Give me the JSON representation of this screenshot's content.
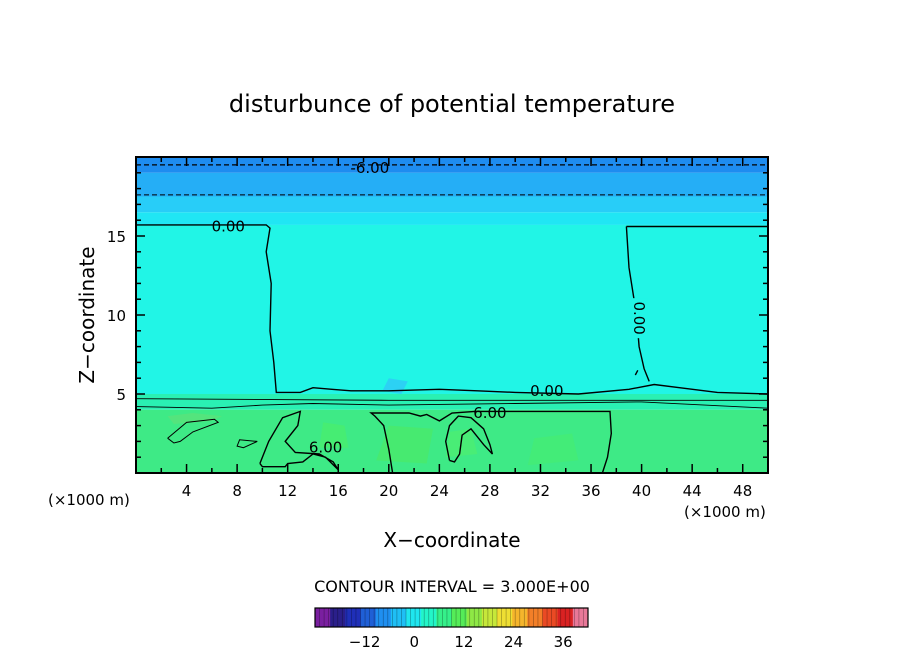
{
  "chart_data": {
    "type": "heatmap",
    "title": "disturbunce of potential temperature",
    "xlabel": "X−coordinate",
    "ylabel": "Z−coordinate",
    "x_unit": "(×1000 m)",
    "z_unit": "(×1000 m)",
    "xlim": [
      0,
      50
    ],
    "ylim": [
      0,
      20
    ],
    "x_ticks": [
      4,
      8,
      12,
      16,
      20,
      24,
      28,
      32,
      36,
      40,
      44,
      48
    ],
    "x_tick_labels": [
      "4",
      "8",
      "12",
      "16",
      "20",
      "24",
      "28",
      "32",
      "36",
      "40",
      "44",
      "48"
    ],
    "y_ticks": [
      5,
      10,
      15
    ],
    "y_tick_labels": [
      "5",
      "10",
      "15"
    ],
    "contour_interval_text": "CONTOUR INTERVAL = 3.000E+00",
    "contour_interval": 3.0,
    "contour_labels": [
      {
        "text": "-6.00",
        "x": 18.5,
        "z": 19.3
      },
      {
        "text": "0.00",
        "x": 7.3,
        "z": 15.6
      },
      {
        "text": "0.00",
        "x": 39.8,
        "z": 9.8,
        "rotated": true
      },
      {
        "text": "0.00",
        "x": 32.5,
        "z": 5.2
      },
      {
        "text": "6.00",
        "x": 28.0,
        "z": 3.8
      },
      {
        "text": "6.00",
        "x": 15.0,
        "z": 1.6
      }
    ],
    "bands": [
      {
        "z_from": 19.0,
        "z_to": 20.0,
        "value": -9,
        "color": "#1e8cf0"
      },
      {
        "z_from": 17.5,
        "z_to": 19.0,
        "value": -6,
        "color": "#25aef6"
      },
      {
        "z_from": 16.5,
        "z_to": 17.5,
        "value": -3,
        "color": "#28cdf8"
      },
      {
        "z_from": 15.7,
        "z_to": 16.5,
        "value": -1,
        "color": "#20e6f4"
      },
      {
        "z_from": 5.0,
        "z_to": 15.7,
        "value": 0,
        "color": "#21f5e6"
      },
      {
        "z_from": 4.0,
        "z_to": 5.0,
        "value": 3,
        "color": "#2af0b3"
      },
      {
        "z_from": 0.0,
        "z_to": 4.0,
        "value": 6,
        "color": "#3eea86"
      }
    ],
    "colorbar": {
      "ticks": [
        -12,
        0,
        12,
        24,
        36
      ],
      "tick_labels": [
        "−12",
        "0",
        "12",
        "24",
        "36"
      ],
      "range": [
        -24,
        42
      ],
      "colors": [
        "#7a1fa0",
        "#2a1f8a",
        "#1f2fb8",
        "#1f5fd6",
        "#1f8ff0",
        "#1fbff5",
        "#1fe6ef",
        "#23f5c8",
        "#35f08a",
        "#55ec58",
        "#8ee845",
        "#c6e83a",
        "#eede33",
        "#f5b52c",
        "#f37f28",
        "#ea4a24",
        "#d92222",
        "#e87898"
      ]
    }
  }
}
